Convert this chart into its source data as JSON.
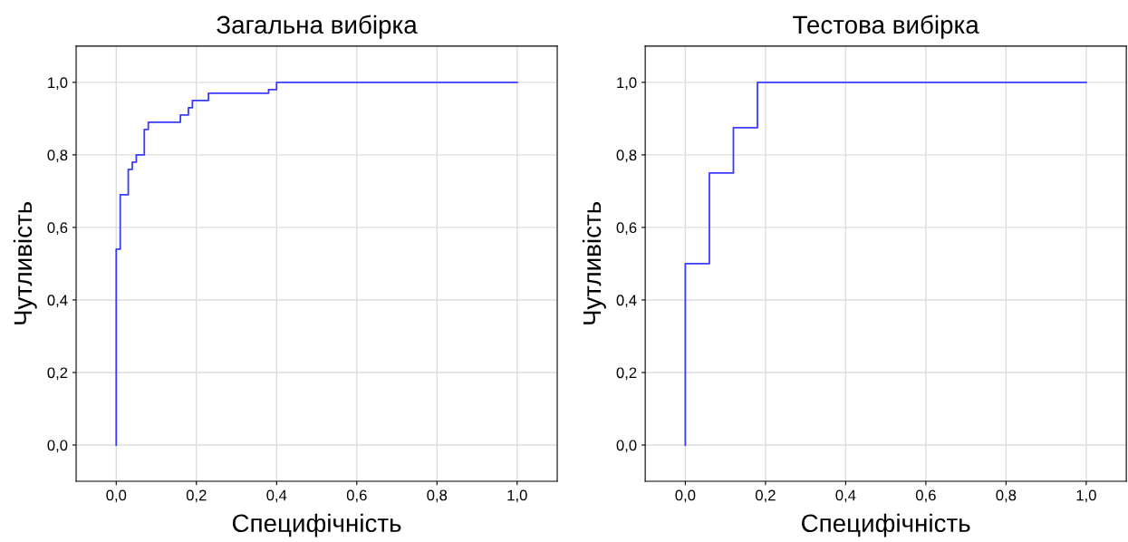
{
  "chart_data": [
    {
      "type": "step",
      "title": "Загальна вибірка",
      "xlabel": "Специфічність",
      "ylabel": "Чутливість",
      "series": [
        {
          "color": "#3b3bff",
          "x": [
            0,
            0,
            0.01,
            0.03,
            0.04,
            0.05,
            0.07,
            0.08,
            0.16,
            0.18,
            0.19,
            0.23,
            0.38,
            0.4,
            1
          ],
          "values": [
            0,
            0.54,
            0.69,
            0.76,
            0.78,
            0.8,
            0.87,
            0.89,
            0.91,
            0.93,
            0.95,
            0.97,
            0.98,
            1,
            1
          ]
        }
      ],
      "xlim": [
        -0.1,
        1.1
      ],
      "ylim": [
        -0.1,
        1.1
      ],
      "xticks": [
        {
          "value": 0,
          "label": "0,0"
        },
        {
          "value": 0.2,
          "label": "0,2"
        },
        {
          "value": 0.4,
          "label": "0,4"
        },
        {
          "value": 0.6,
          "label": "0,6"
        },
        {
          "value": 0.8,
          "label": "0,8"
        },
        {
          "value": 1,
          "label": "1,0"
        }
      ],
      "yticks": [
        {
          "value": 0,
          "label": "0,0"
        },
        {
          "value": 0.2,
          "label": "0,2"
        },
        {
          "value": 0.4,
          "label": "0,4"
        },
        {
          "value": 0.6,
          "label": "0,6"
        },
        {
          "value": 0.8,
          "label": "0,8"
        },
        {
          "value": 1,
          "label": "1,0"
        }
      ],
      "grid": true
    },
    {
      "type": "step",
      "title": "Тестова вибірка",
      "xlabel": "Специфічність",
      "ylabel": "Чутливість",
      "series": [
        {
          "color": "#3b3bff",
          "x": [
            0,
            0,
            0.06,
            0.12,
            0.18,
            1
          ],
          "values": [
            0,
            0.5,
            0.75,
            0.875,
            1,
            1
          ]
        }
      ],
      "xlim": [
        -0.1,
        1.1
      ],
      "ylim": [
        -0.1,
        1.1
      ],
      "xticks": [
        {
          "value": 0,
          "label": "0,0"
        },
        {
          "value": 0.2,
          "label": "0,2"
        },
        {
          "value": 0.4,
          "label": "0,4"
        },
        {
          "value": 0.6,
          "label": "0,6"
        },
        {
          "value": 0.8,
          "label": "0,8"
        },
        {
          "value": 1,
          "label": "1,0"
        }
      ],
      "yticks": [
        {
          "value": 0,
          "label": "0,0"
        },
        {
          "value": 0.2,
          "label": "0,2"
        },
        {
          "value": 0.4,
          "label": "0,4"
        },
        {
          "value": 0.6,
          "label": "0,6"
        },
        {
          "value": 0.8,
          "label": "0,8"
        },
        {
          "value": 1,
          "label": "1,0"
        }
      ],
      "grid": true
    }
  ]
}
